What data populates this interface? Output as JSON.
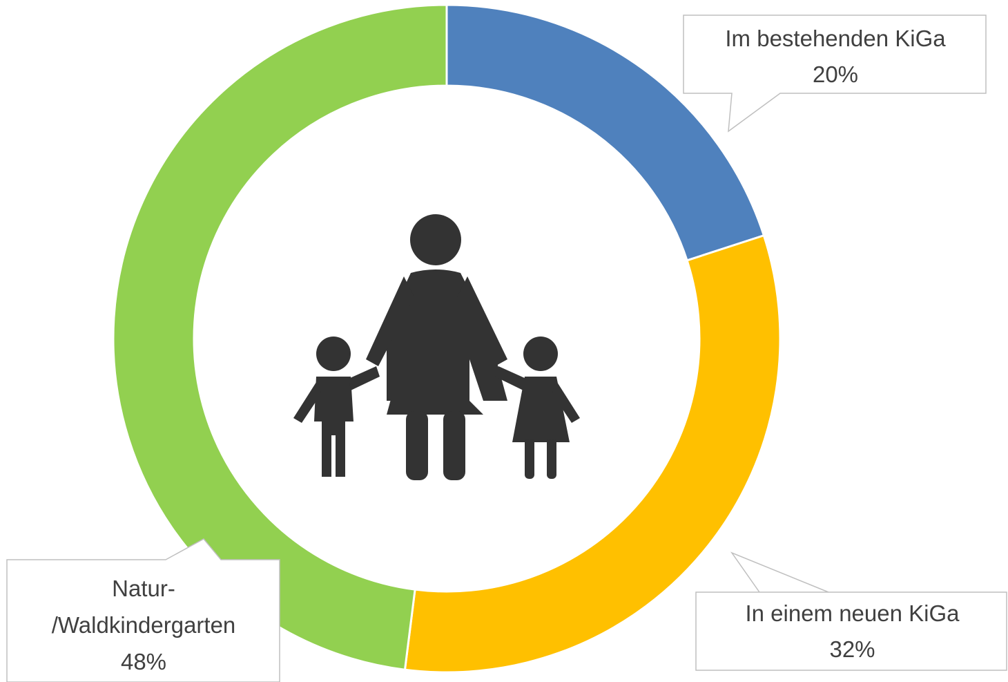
{
  "chart_data": {
    "type": "donut",
    "categories": [
      "Im bestehenden KiGa",
      "In einem neuen KiGa",
      "Natur-/Waldkindergarten"
    ],
    "values": [
      20,
      32,
      48
    ],
    "value_labels": [
      "20%",
      "32%",
      "48%"
    ],
    "colors": [
      "#4f81bd",
      "#ffc000",
      "#92d050"
    ]
  }
}
